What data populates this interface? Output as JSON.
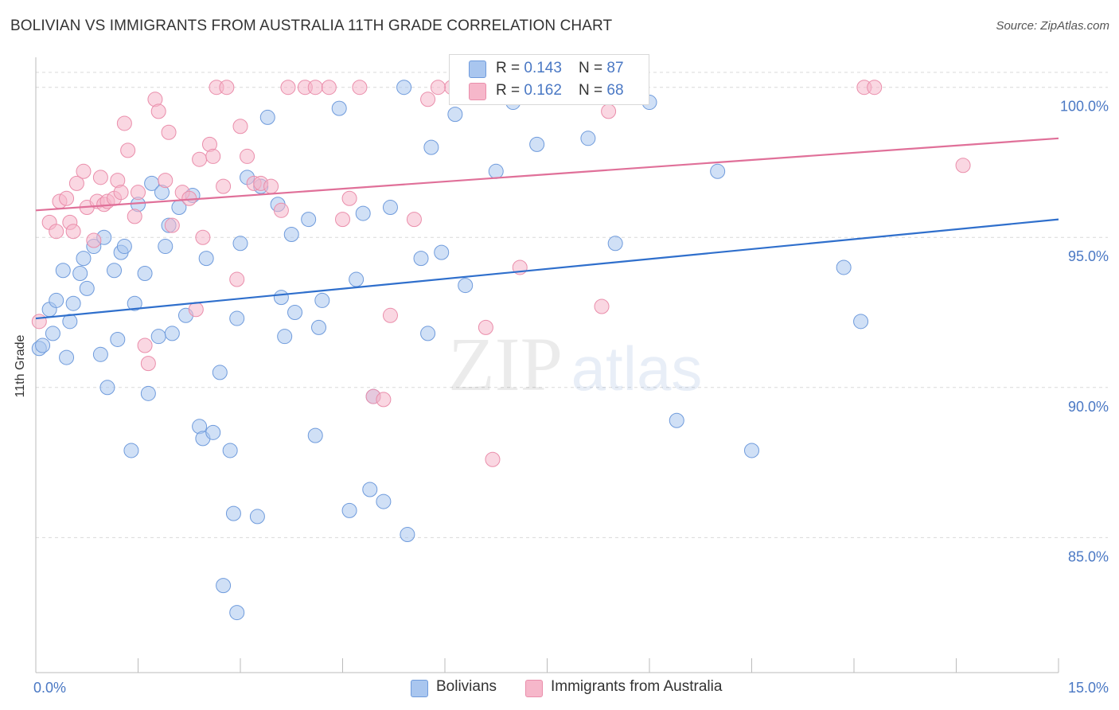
{
  "header": {
    "title": "BOLIVIAN VS IMMIGRANTS FROM AUSTRALIA 11TH GRADE CORRELATION CHART",
    "source": "Source: ZipAtlas.com"
  },
  "watermark": {
    "part1": "ZIP",
    "part2": "atlas"
  },
  "legend": {
    "rows": [
      {
        "r_label": "R = ",
        "r_value": "0.143",
        "n_label": "N = ",
        "n_value": "87"
      },
      {
        "r_label": "R = ",
        "r_value": "0.162",
        "n_label": "N = ",
        "n_value": "68"
      }
    ]
  },
  "bottom_legend": {
    "series1": "Bolivians",
    "series2": "Immigrants from Australia"
  },
  "colors": {
    "blue_fill": "#a9c6ef",
    "blue_stroke": "#6f9bdc",
    "blue_line": "#2f6fcc",
    "pink_fill": "#f6b7ca",
    "pink_stroke": "#ea8eab",
    "pink_line": "#e07099",
    "grid": "#d9d9d9",
    "axis_text": "#4a78c4"
  },
  "chart_data": {
    "type": "scatter",
    "title": "BOLIVIAN VS IMMIGRANTS FROM AUSTRALIA 11TH GRADE CORRELATION CHART",
    "xlabel": "",
    "ylabel": "11th Grade",
    "xlim": [
      0,
      15
    ],
    "ylim": [
      80.5,
      101
    ],
    "x_tick_labels": [
      "0.0%",
      "15.0%"
    ],
    "y_ticks": [
      85,
      90,
      95,
      100
    ],
    "y_tick_labels": [
      "85.0%",
      "90.0%",
      "95.0%",
      "100.0%"
    ],
    "grid": true,
    "series": [
      {
        "name": "Bolivians",
        "R": 0.143,
        "N": 87,
        "trend": {
          "x": [
            0,
            15
          ],
          "y": [
            92.3,
            95.6
          ]
        },
        "points": [
          [
            0.05,
            91.3
          ],
          [
            0.2,
            92.6
          ],
          [
            0.25,
            91.8
          ],
          [
            0.3,
            92.9
          ],
          [
            0.4,
            93.9
          ],
          [
            0.45,
            91.0
          ],
          [
            0.5,
            92.2
          ],
          [
            0.55,
            92.8
          ],
          [
            0.65,
            93.8
          ],
          [
            0.7,
            94.3
          ],
          [
            0.75,
            93.3
          ],
          [
            0.85,
            94.7
          ],
          [
            0.95,
            91.1
          ],
          [
            1.0,
            95.0
          ],
          [
            1.05,
            90.0
          ],
          [
            1.15,
            93.9
          ],
          [
            1.2,
            91.6
          ],
          [
            1.25,
            94.5
          ],
          [
            1.3,
            94.7
          ],
          [
            1.4,
            87.9
          ],
          [
            1.45,
            92.8
          ],
          [
            1.5,
            96.1
          ],
          [
            1.6,
            93.8
          ],
          [
            1.65,
            89.8
          ],
          [
            1.7,
            96.8
          ],
          [
            1.8,
            91.7
          ],
          [
            1.85,
            96.5
          ],
          [
            1.9,
            94.7
          ],
          [
            1.95,
            95.4
          ],
          [
            2.0,
            91.8
          ],
          [
            2.1,
            96.0
          ],
          [
            2.2,
            92.4
          ],
          [
            2.3,
            96.4
          ],
          [
            2.4,
            88.7
          ],
          [
            2.45,
            88.3
          ],
          [
            2.5,
            94.3
          ],
          [
            2.6,
            88.5
          ],
          [
            2.7,
            90.5
          ],
          [
            2.75,
            83.4
          ],
          [
            2.85,
            87.9
          ],
          [
            2.9,
            85.8
          ],
          [
            2.95,
            92.3
          ],
          [
            3.0,
            94.8
          ],
          [
            3.1,
            97.0
          ],
          [
            3.25,
            85.7
          ],
          [
            3.3,
            96.7
          ],
          [
            3.4,
            99.0
          ],
          [
            3.55,
            96.1
          ],
          [
            3.65,
            91.7
          ],
          [
            3.75,
            95.1
          ],
          [
            3.8,
            92.5
          ],
          [
            4.0,
            95.6
          ],
          [
            4.1,
            88.4
          ],
          [
            4.15,
            92.0
          ],
          [
            4.2,
            92.9
          ],
          [
            4.45,
            99.3
          ],
          [
            4.6,
            85.9
          ],
          [
            4.7,
            93.6
          ],
          [
            4.8,
            95.8
          ],
          [
            4.9,
            86.6
          ],
          [
            4.95,
            89.7
          ],
          [
            5.1,
            86.2
          ],
          [
            5.2,
            96.0
          ],
          [
            5.4,
            100.0
          ],
          [
            5.45,
            85.1
          ],
          [
            5.65,
            94.3
          ],
          [
            5.75,
            91.8
          ],
          [
            5.8,
            98.0
          ],
          [
            5.95,
            94.5
          ],
          [
            6.15,
            99.1
          ],
          [
            6.3,
            93.4
          ],
          [
            6.75,
            97.2
          ],
          [
            7.0,
            99.5
          ],
          [
            7.35,
            98.1
          ],
          [
            7.6,
            99.7
          ],
          [
            8.1,
            98.3
          ],
          [
            8.5,
            94.8
          ],
          [
            8.85,
            100.0
          ],
          [
            9.0,
            99.5
          ],
          [
            9.4,
            88.9
          ],
          [
            10.0,
            97.2
          ],
          [
            10.5,
            87.9
          ],
          [
            11.85,
            94.0
          ],
          [
            12.1,
            92.2
          ],
          [
            2.95,
            82.5
          ],
          [
            0.1,
            91.4
          ],
          [
            3.6,
            93.0
          ]
        ]
      },
      {
        "name": "Immigrants from Australia",
        "R": 0.162,
        "N": 68,
        "trend": {
          "x": [
            0,
            15
          ],
          "y": [
            95.9,
            98.3
          ]
        },
        "points": [
          [
            0.05,
            92.2
          ],
          [
            0.2,
            95.5
          ],
          [
            0.3,
            95.2
          ],
          [
            0.35,
            96.2
          ],
          [
            0.45,
            96.3
          ],
          [
            0.5,
            95.5
          ],
          [
            0.55,
            95.2
          ],
          [
            0.6,
            96.8
          ],
          [
            0.7,
            97.2
          ],
          [
            0.75,
            96.0
          ],
          [
            0.85,
            94.9
          ],
          [
            0.9,
            96.2
          ],
          [
            0.95,
            97.0
          ],
          [
            1.0,
            96.1
          ],
          [
            1.05,
            96.2
          ],
          [
            1.15,
            96.3
          ],
          [
            1.2,
            96.9
          ],
          [
            1.25,
            96.5
          ],
          [
            1.3,
            98.8
          ],
          [
            1.35,
            97.9
          ],
          [
            1.45,
            95.7
          ],
          [
            1.5,
            96.5
          ],
          [
            1.6,
            91.4
          ],
          [
            1.65,
            90.8
          ],
          [
            1.75,
            99.6
          ],
          [
            1.8,
            99.2
          ],
          [
            1.9,
            96.9
          ],
          [
            1.95,
            98.5
          ],
          [
            2.0,
            95.4
          ],
          [
            2.15,
            96.5
          ],
          [
            2.25,
            96.3
          ],
          [
            2.35,
            92.6
          ],
          [
            2.4,
            97.6
          ],
          [
            2.45,
            95.0
          ],
          [
            2.55,
            98.1
          ],
          [
            2.6,
            97.7
          ],
          [
            2.65,
            100.0
          ],
          [
            2.75,
            96.7
          ],
          [
            2.8,
            100.0
          ],
          [
            2.95,
            93.6
          ],
          [
            3.0,
            98.7
          ],
          [
            3.1,
            97.7
          ],
          [
            3.2,
            96.8
          ],
          [
            3.3,
            96.8
          ],
          [
            3.45,
            96.7
          ],
          [
            3.6,
            95.9
          ],
          [
            3.7,
            100.0
          ],
          [
            3.95,
            100.0
          ],
          [
            4.1,
            100.0
          ],
          [
            4.3,
            100.0
          ],
          [
            4.5,
            95.6
          ],
          [
            4.6,
            96.3
          ],
          [
            4.75,
            100.0
          ],
          [
            4.95,
            89.7
          ],
          [
            5.1,
            89.6
          ],
          [
            5.2,
            92.4
          ],
          [
            5.55,
            95.6
          ],
          [
            5.75,
            99.6
          ],
          [
            6.1,
            100.0
          ],
          [
            6.6,
            92.0
          ],
          [
            6.7,
            87.6
          ],
          [
            7.1,
            94.0
          ],
          [
            8.3,
            92.7
          ],
          [
            8.4,
            99.2
          ],
          [
            12.15,
            100.0
          ],
          [
            12.3,
            100.0
          ],
          [
            13.6,
            97.4
          ],
          [
            5.9,
            100.0
          ]
        ]
      }
    ]
  }
}
